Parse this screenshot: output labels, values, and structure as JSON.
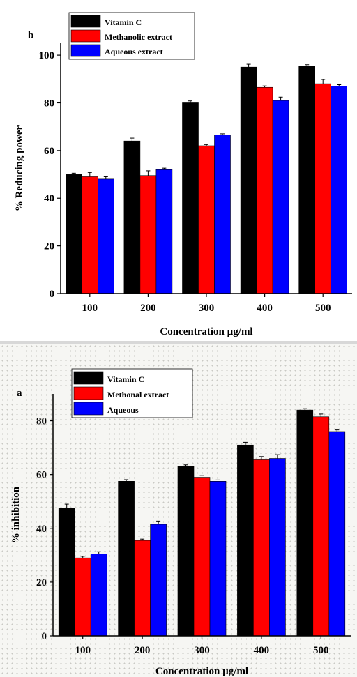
{
  "chart_data": [
    {
      "type": "bar",
      "panel_label": "b",
      "xlabel": "Concentration µg/ml",
      "ylabel": "% Reducing power",
      "categories": [
        "100",
        "200",
        "300",
        "400",
        "500"
      ],
      "ylim": [
        0,
        105
      ],
      "yticks": [
        "0",
        "20",
        "40",
        "60",
        "80",
        "100"
      ],
      "ytick_values": [
        0,
        20,
        40,
        60,
        80,
        100
      ],
      "legend_position": "top-left",
      "grid": false,
      "series": [
        {
          "name": "Vitamin C",
          "color": "#000000",
          "values": [
            50,
            64,
            80,
            95,
            95.5
          ],
          "errors": [
            0.5,
            1.2,
            0.8,
            1.2,
            0.5
          ]
        },
        {
          "name": "Methanolic extract",
          "color": "#ff0000",
          "values": [
            49,
            49.5,
            62,
            86.5,
            88
          ],
          "errors": [
            1.8,
            2.0,
            0.5,
            0.6,
            1.8
          ]
        },
        {
          "name": "Aqueous extract",
          "color": "#0000ff",
          "values": [
            48,
            52,
            66.5,
            81,
            87
          ],
          "errors": [
            1.0,
            0.6,
            0.5,
            1.4,
            0.6
          ]
        }
      ]
    },
    {
      "type": "bar",
      "panel_label": "a",
      "xlabel": "Concentration µg/ml",
      "ylabel": "% inhibition",
      "categories": [
        "100",
        "200",
        "300",
        "400",
        "500"
      ],
      "ylim": [
        0,
        90
      ],
      "yticks": [
        "0",
        "20",
        "40",
        "60",
        "80"
      ],
      "ytick_values": [
        0,
        20,
        40,
        60,
        80
      ],
      "legend_position": "top-left",
      "grid": false,
      "series": [
        {
          "name": "Vitamin C",
          "color": "#000000",
          "values": [
            47.5,
            57.5,
            63,
            71,
            84
          ],
          "errors": [
            1.5,
            0.6,
            0.6,
            1.0,
            0.5
          ]
        },
        {
          "name": "Methonal extract",
          "color": "#ff0000",
          "values": [
            29,
            35.5,
            59,
            65.5,
            81.5
          ],
          "errors": [
            0.6,
            0.5,
            0.6,
            1.2,
            1.0
          ]
        },
        {
          "name": "Aqueous",
          "color": "#0000ff",
          "values": [
            30.5,
            41.5,
            57.5,
            66,
            76
          ],
          "errors": [
            0.8,
            1.2,
            0.5,
            1.4,
            0.6
          ]
        }
      ]
    }
  ]
}
